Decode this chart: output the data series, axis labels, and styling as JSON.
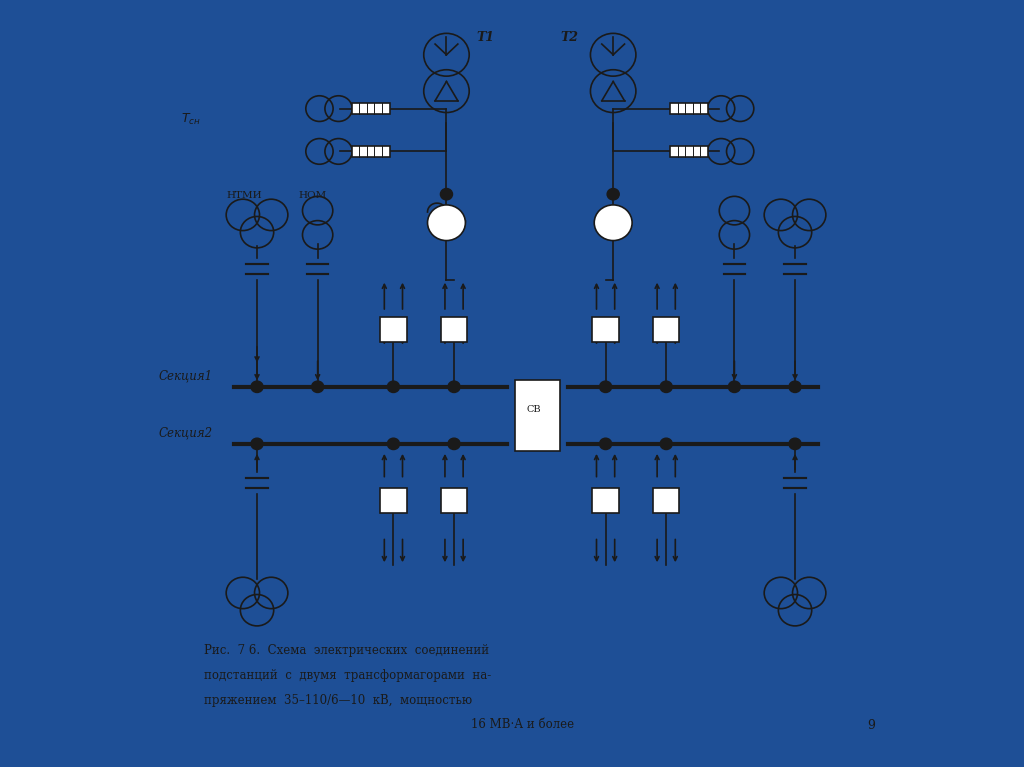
{
  "bg_color": "#1e4f96",
  "panel_color": "#f5f2e8",
  "line_color": "#1a1a1a",
  "caption_line1": "Рис.  7 6.  Схема  электрических  соединений",
  "caption_line2": "подстанций  с  двумя  трансформагорами  на-",
  "caption_line3": "пряжением  35–110/6—10  кВ,  мощностью",
  "caption_line4": "16 МВ·А и более",
  "page_num": "9"
}
